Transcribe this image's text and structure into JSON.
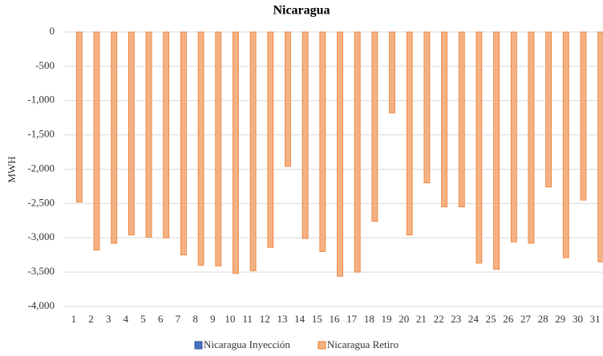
{
  "chart_data": {
    "type": "bar",
    "title": "Nicaragua",
    "y_label": "MWH",
    "categories": [
      "1",
      "2",
      "3",
      "4",
      "5",
      "6",
      "7",
      "8",
      "9",
      "10",
      "11",
      "12",
      "13",
      "14",
      "15",
      "16",
      "17",
      "18",
      "19",
      "20",
      "21",
      "22",
      "23",
      "24",
      "25",
      "26",
      "27",
      "28",
      "29",
      "30",
      "31"
    ],
    "series": [
      {
        "name": "Nicaragua Inyección",
        "color": "#4472c4",
        "values": [
          0,
          0,
          0,
          0,
          0,
          0,
          0,
          0,
          0,
          0,
          0,
          0,
          0,
          0,
          0,
          0,
          0,
          0,
          0,
          0,
          0,
          0,
          0,
          0,
          0,
          0,
          0,
          0,
          0,
          0,
          0
        ]
      },
      {
        "name": "Nicaragua Retiro",
        "color": "#f4b183",
        "values": [
          -2480,
          -3180,
          -3080,
          -2960,
          -2990,
          -3000,
          -3250,
          -3400,
          -3410,
          -3520,
          -3480,
          -3140,
          -1960,
          -3010,
          -3200,
          -3560,
          -3500,
          -2760,
          -1180,
          -2960,
          -2200,
          -2550,
          -2550,
          -3370,
          -3460,
          -3060,
          -3080,
          -2260,
          -3290,
          -2450,
          -3350
        ]
      }
    ],
    "ylim": [
      -4000,
      0
    ],
    "yticks": [
      {
        "value": -4000,
        "label": "-4,000"
      },
      {
        "value": -3500,
        "label": "-3,500"
      },
      {
        "value": -3000,
        "label": "-3,000"
      },
      {
        "value": -2500,
        "label": "-2,500"
      },
      {
        "value": -2000,
        "label": "-2,000"
      },
      {
        "value": -1500,
        "label": "-1,500"
      },
      {
        "value": -1000,
        "label": "-1,000"
      },
      -500,
      0
    ],
    "grid": true,
    "legend": "bottom"
  }
}
